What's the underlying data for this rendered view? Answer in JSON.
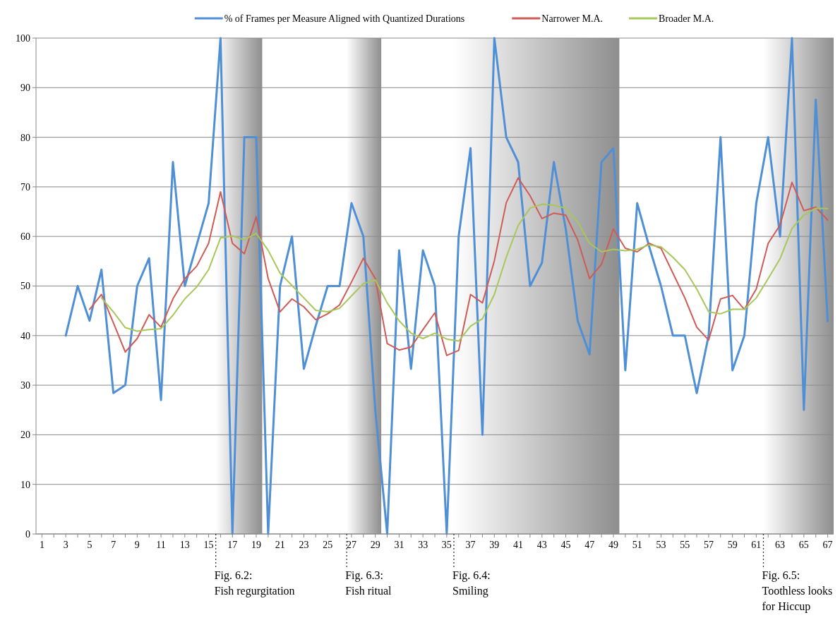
{
  "chart_data": {
    "type": "line",
    "xlim": [
      0.5,
      67.5
    ],
    "xticks": [
      1,
      {
        "value": 2,
        "label": null
      },
      3,
      {
        "value": 4,
        "label": null
      },
      5,
      {
        "value": 6,
        "label": null
      },
      7,
      {
        "value": 8,
        "label": null
      },
      9,
      {
        "value": 10,
        "label": null
      },
      11,
      {
        "value": 12,
        "label": null
      },
      13,
      {
        "value": 14,
        "label": null
      },
      15,
      {
        "value": 16,
        "label": null
      },
      17,
      {
        "value": 18,
        "label": null
      },
      19,
      {
        "value": 20,
        "label": null
      },
      21,
      {
        "value": 22,
        "label": null
      },
      23,
      {
        "value": 24,
        "label": null
      },
      25,
      {
        "value": 26,
        "label": null
      },
      27,
      {
        "value": 28,
        "label": null
      },
      29,
      {
        "value": 30,
        "label": null
      },
      31,
      {
        "value": 32,
        "label": null
      },
      33,
      {
        "value": 34,
        "label": null
      },
      35,
      {
        "value": 36,
        "label": null
      },
      37,
      {
        "value": 38,
        "label": null
      },
      39,
      {
        "value": 40,
        "label": null
      },
      41,
      {
        "value": 42,
        "label": null
      },
      43,
      {
        "value": 44,
        "label": null
      },
      45,
      {
        "value": 46,
        "label": null
      },
      47,
      {
        "value": 48,
        "label": null
      },
      49,
      {
        "value": 50,
        "label": null
      },
      51,
      {
        "value": 52,
        "label": null
      },
      53,
      {
        "value": 54,
        "label": null
      },
      55,
      {
        "value": 56,
        "label": null
      },
      57,
      {
        "value": 58,
        "label": null
      },
      59,
      {
        "value": 60,
        "label": null
      },
      61,
      {
        "value": 62,
        "label": null
      },
      63,
      {
        "value": 64,
        "label": null
      },
      65,
      {
        "value": 66,
        "label": null
      },
      67
    ],
    "ylim": [
      0,
      100
    ],
    "yticks": [
      0,
      10,
      20,
      30,
      40,
      50,
      60,
      70,
      80,
      90,
      100
    ],
    "grid": "y",
    "legend": "top",
    "marker": "none",
    "line_style": "solid",
    "series": [
      {
        "name": "% of Frames per Measure Aligned with Quantized Durations",
        "color": "#4f8fd6",
        "x": [
          3,
          4,
          5,
          6,
          7,
          8,
          9,
          10,
          11,
          12,
          13,
          14,
          15,
          16,
          17,
          18,
          19,
          20,
          21,
          22,
          23,
          24,
          25,
          26,
          27,
          28,
          29,
          30,
          31,
          32,
          33,
          34,
          35,
          36,
          37,
          38,
          39,
          40,
          41,
          42,
          43,
          44,
          45,
          46,
          47,
          48,
          49,
          50,
          51,
          52,
          53,
          54,
          55,
          56,
          57,
          58,
          59,
          60,
          61,
          62,
          63,
          64,
          65,
          66,
          67
        ],
        "values": [
          40,
          50,
          43,
          53.3,
          28.4,
          30,
          50,
          55.6,
          27,
          75,
          50,
          58.3,
          66.7,
          100,
          0,
          80,
          80,
          0,
          50,
          60,
          33.3,
          42,
          50,
          50,
          66.7,
          60,
          25,
          0,
          57.2,
          33.3,
          57.2,
          50,
          0,
          60,
          77.8,
          20,
          100,
          80,
          75,
          50,
          54.7,
          75,
          61.5,
          43,
          36.2,
          75,
          77.8,
          33,
          66.7,
          58,
          50,
          40,
          40,
          28.4,
          40,
          80,
          33,
          40,
          66.7,
          80,
          60,
          100,
          25,
          87.6,
          42.9
        ]
      },
      {
        "name": "Narrower M.A.",
        "color": "#cf5b56",
        "x": [
          5,
          6,
          7,
          8,
          9,
          10,
          11,
          12,
          13,
          14,
          15,
          16,
          17,
          18,
          19,
          20,
          21,
          22,
          23,
          24,
          25,
          26,
          27,
          28,
          29,
          30,
          31,
          32,
          33,
          34,
          35,
          36,
          37,
          38,
          39,
          40,
          41,
          42,
          43,
          44,
          45,
          46,
          47,
          48,
          49,
          50,
          51,
          52,
          53,
          54,
          55,
          56,
          57,
          58,
          59,
          60,
          61,
          62,
          63,
          64,
          65,
          66,
          67
        ],
        "values": [
          45.3,
          48.3,
          42.6,
          36.7,
          39.4,
          44.2,
          41.7,
          47.4,
          51.5,
          54,
          58.6,
          69,
          58.6,
          56.5,
          64,
          51.5,
          44.8,
          47.4,
          45.8,
          43.2,
          44.4,
          46.2,
          50.8,
          55.6,
          51.5,
          38.4,
          37.1,
          37.7,
          41.2,
          44.6,
          36,
          37,
          48.3,
          46.6,
          55.1,
          66.8,
          71.8,
          68.2,
          63.6,
          64.7,
          64.3,
          59.3,
          51.5,
          54.4,
          61.5,
          57.6,
          56.9,
          58.6,
          57.6,
          52.6,
          47.6,
          41.7,
          39.1,
          47.4,
          48.1,
          45.3,
          49.4,
          58.6,
          62.3,
          70.9,
          65.2,
          65.9,
          63.3
        ]
      },
      {
        "name": "Broader M.A.",
        "color": "#a8c75a",
        "x": [
          6,
          7,
          8,
          9,
          10,
          11,
          12,
          13,
          14,
          15,
          16,
          17,
          18,
          19,
          20,
          21,
          22,
          23,
          24,
          25,
          26,
          27,
          28,
          29,
          30,
          31,
          32,
          33,
          34,
          35,
          36,
          37,
          38,
          39,
          40,
          41,
          42,
          43,
          44,
          45,
          46,
          47,
          48,
          49,
          50,
          51,
          52,
          53,
          54,
          55,
          56,
          57,
          58,
          59,
          60,
          61,
          62,
          63,
          64,
          65,
          66,
          67
        ],
        "values": [
          47.6,
          44.8,
          41.6,
          40.9,
          41.2,
          41.4,
          44.1,
          47.4,
          49.8,
          53.3,
          59.7,
          60.1,
          59.3,
          60.6,
          57.2,
          52.6,
          50.1,
          47.6,
          45.1,
          44.8,
          45.5,
          48,
          50.5,
          51.2,
          46.6,
          43,
          40.5,
          39.4,
          40.5,
          39.3,
          38.9,
          41.9,
          43.4,
          48.3,
          55.8,
          62.2,
          65.7,
          66.5,
          66.3,
          65.7,
          62.9,
          58.6,
          56.9,
          57.4,
          57.1,
          57.4,
          58.3,
          57.9,
          55.8,
          53.3,
          49.4,
          44.8,
          44.4,
          45.3,
          45.3,
          47.6,
          51.5,
          55.5,
          61.6,
          64.3,
          65.7,
          65.6
        ]
      }
    ],
    "bands": [
      {
        "axis": "x",
        "from": 15.6,
        "to": 19.5,
        "color": "#7a7a7a"
      },
      {
        "axis": "x",
        "from": 26.6,
        "to": 29.5,
        "color": "#7a7a7a"
      },
      {
        "axis": "x",
        "from": 35.6,
        "to": 49.5,
        "color": "#7a7a7a"
      },
      {
        "axis": "x",
        "from": 61.6,
        "to": 67.5,
        "color": "#7a7a7a"
      }
    ],
    "ref_lines": [
      {
        "axis": "x",
        "value": 15.6,
        "label": "Fig. 6.2:\nFish regurgitation",
        "line_style": "dotted"
      },
      {
        "axis": "x",
        "value": 26.6,
        "label": "Fig. 6.3:\nFish ritual",
        "line_style": "dotted"
      },
      {
        "axis": "x",
        "value": 35.6,
        "label": "Fig. 6.4:\nSmiling",
        "line_style": "dotted"
      },
      {
        "axis": "x",
        "value": 61.6,
        "label": "Fig. 6.5:\nToothless looks\nfor Hiccup",
        "line_style": "dotted"
      }
    ]
  }
}
